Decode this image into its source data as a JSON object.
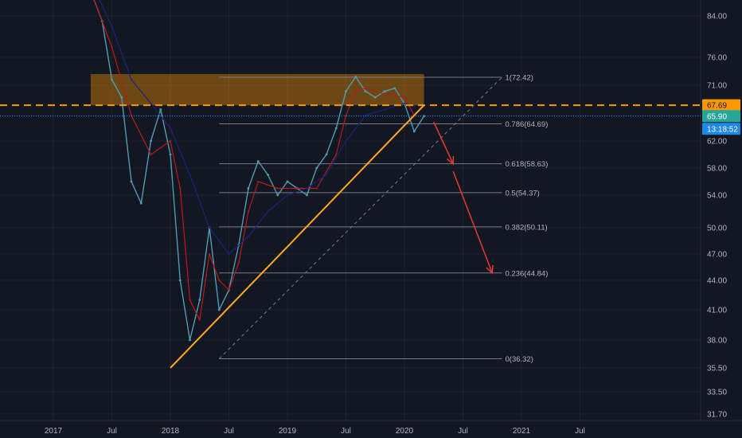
{
  "chart_data": {
    "type": "line",
    "y_ticks": [
      84.0,
      76.0,
      71.0,
      66.0,
      62.0,
      58.0,
      54.0,
      50.0,
      47.0,
      44.0,
      41.0,
      38.0,
      35.5,
      33.5,
      31.7
    ],
    "y_tick_labels": [
      "84.00",
      "76.00",
      "71.00",
      "66.00",
      "62.00",
      "58.00",
      "54.00",
      "50.00",
      "47.00",
      "44.00",
      "41.00",
      "38.00",
      "35.50",
      "33.50",
      "31.70"
    ],
    "x_ticks": [
      {
        "date": "2017-01",
        "label": "2017"
      },
      {
        "date": "2017-07",
        "label": "Jul"
      },
      {
        "date": "2018-01",
        "label": "2018"
      },
      {
        "date": "2018-07",
        "label": "Jul"
      },
      {
        "date": "2019-01",
        "label": "2019"
      },
      {
        "date": "2019-07",
        "label": "Jul"
      },
      {
        "date": "2020-01",
        "label": "2020"
      },
      {
        "date": "2020-07",
        "label": "Jul"
      },
      {
        "date": "2021-01",
        "label": "2021"
      },
      {
        "date": "2021-07",
        "label": "Jul"
      }
    ],
    "series": [
      {
        "color": "#4f9db3",
        "points": [
          [
            "2017-05",
            88
          ],
          [
            "2017-06",
            83
          ],
          [
            "2017-07",
            72
          ],
          [
            "2017-08",
            69
          ],
          [
            "2017-09",
            56
          ],
          [
            "2017-10",
            53
          ],
          [
            "2017-11",
            62
          ],
          [
            "2017-12",
            67
          ],
          [
            "2018-01",
            60
          ],
          [
            "2018-02",
            44
          ],
          [
            "2018-03",
            38
          ],
          [
            "2018-04",
            42
          ],
          [
            "2018-05",
            50
          ],
          [
            "2018-06",
            41
          ],
          [
            "2018-07",
            43
          ],
          [
            "2018-08",
            48
          ],
          [
            "2018-09",
            55
          ],
          [
            "2018-10",
            59
          ],
          [
            "2018-11",
            57
          ],
          [
            "2018-12",
            54
          ],
          [
            "2019-01",
            56
          ],
          [
            "2019-02",
            55
          ],
          [
            "2019-03",
            54
          ],
          [
            "2019-04",
            58
          ],
          [
            "2019-05",
            60
          ],
          [
            "2019-06",
            64
          ],
          [
            "2019-07",
            70
          ],
          [
            "2019-08",
            72.5
          ],
          [
            "2019-09",
            70
          ],
          [
            "2019-10",
            69
          ],
          [
            "2019-11",
            70
          ],
          [
            "2019-12",
            70.5
          ],
          [
            "2020-01",
            68
          ],
          [
            "2020-02",
            63.5
          ],
          [
            "2020-03",
            65.9
          ]
        ]
      },
      {
        "color": "#b71c1c",
        "points": [
          [
            "2017-05",
            88
          ],
          [
            "2017-07",
            78
          ],
          [
            "2017-09",
            66
          ],
          [
            "2017-11",
            60
          ],
          [
            "2018-01",
            62
          ],
          [
            "2018-02",
            55
          ],
          [
            "2018-03",
            42
          ],
          [
            "2018-04",
            40
          ],
          [
            "2018-05",
            47
          ],
          [
            "2018-06",
            44
          ],
          [
            "2018-07",
            43
          ],
          [
            "2018-08",
            46
          ],
          [
            "2018-09",
            52
          ],
          [
            "2018-10",
            56
          ],
          [
            "2018-12",
            55
          ],
          [
            "2019-02",
            55
          ],
          [
            "2019-04",
            55
          ],
          [
            "2019-06",
            60
          ],
          [
            "2019-07",
            66
          ],
          [
            "2019-08",
            70
          ],
          [
            "2019-09",
            70.5
          ],
          [
            "2019-11",
            69.5
          ],
          [
            "2020-01",
            69
          ],
          [
            "2020-02",
            66
          ]
        ]
      },
      {
        "color": "#1a237e",
        "points": [
          [
            "2017-05",
            90
          ],
          [
            "2017-07",
            82
          ],
          [
            "2017-09",
            72
          ],
          [
            "2017-11",
            68
          ],
          [
            "2018-01",
            64
          ],
          [
            "2018-03",
            57
          ],
          [
            "2018-05",
            50
          ],
          [
            "2018-07",
            47
          ],
          [
            "2018-09",
            49
          ],
          [
            "2018-11",
            52
          ],
          [
            "2019-01",
            54
          ],
          [
            "2019-03",
            55
          ],
          [
            "2019-05",
            57
          ],
          [
            "2019-07",
            62
          ],
          [
            "2019-09",
            66
          ],
          [
            "2019-11",
            67
          ],
          [
            "2020-01",
            68
          ],
          [
            "2020-02",
            67.5
          ]
        ]
      }
    ],
    "trendline": {
      "from": [
        "2018-01",
        35.5
      ],
      "to": [
        "2020-03",
        67.69
      ],
      "color": "#ffa726"
    },
    "support_line": {
      "value": 67.69,
      "color": "#ff9800",
      "label": "67.69"
    },
    "last_price": {
      "value": 65.9,
      "label": "65.90",
      "color": "#2196f3"
    },
    "countdown": {
      "label": "13:18:52",
      "value": 63.9
    },
    "resistance_zone": {
      "from_date": "2017-05",
      "to_date": "2020-03",
      "y_top": 73,
      "y_bottom": 67.69,
      "color": "#ff9800"
    },
    "fib_levels": [
      {
        "ratio": "1",
        "value": 72.42,
        "label": "1(72.42)"
      },
      {
        "ratio": "0.786",
        "value": 64.69,
        "label": "0.786(64.69)"
      },
      {
        "ratio": "0.618",
        "value": 58.63,
        "label": "0.618(58.63)"
      },
      {
        "ratio": "0.5",
        "value": 54.37,
        "label": "0.5(54.37)"
      },
      {
        "ratio": "0.382",
        "value": 50.11,
        "label": "0.382(50.11)"
      },
      {
        "ratio": "0.236",
        "value": 44.84,
        "label": "0.236(44.84)"
      },
      {
        "ratio": "0",
        "value": 36.32,
        "label": "0(36.32)"
      }
    ],
    "fib_range": {
      "from_date": "2018-06",
      "to_date": "2020-11"
    },
    "fib_diagonal": {
      "from": [
        "2018-06",
        36.32
      ],
      "to": [
        "2020-11",
        72.42
      ]
    },
    "arrows": [
      {
        "from": [
          "2020-04",
          65
        ],
        "to": [
          "2020-06",
          58.6
        ],
        "color": "#e53935"
      },
      {
        "from": [
          "2020-06",
          57.5
        ],
        "to": [
          "2020-10",
          44.84
        ],
        "color": "#e53935"
      }
    ]
  }
}
